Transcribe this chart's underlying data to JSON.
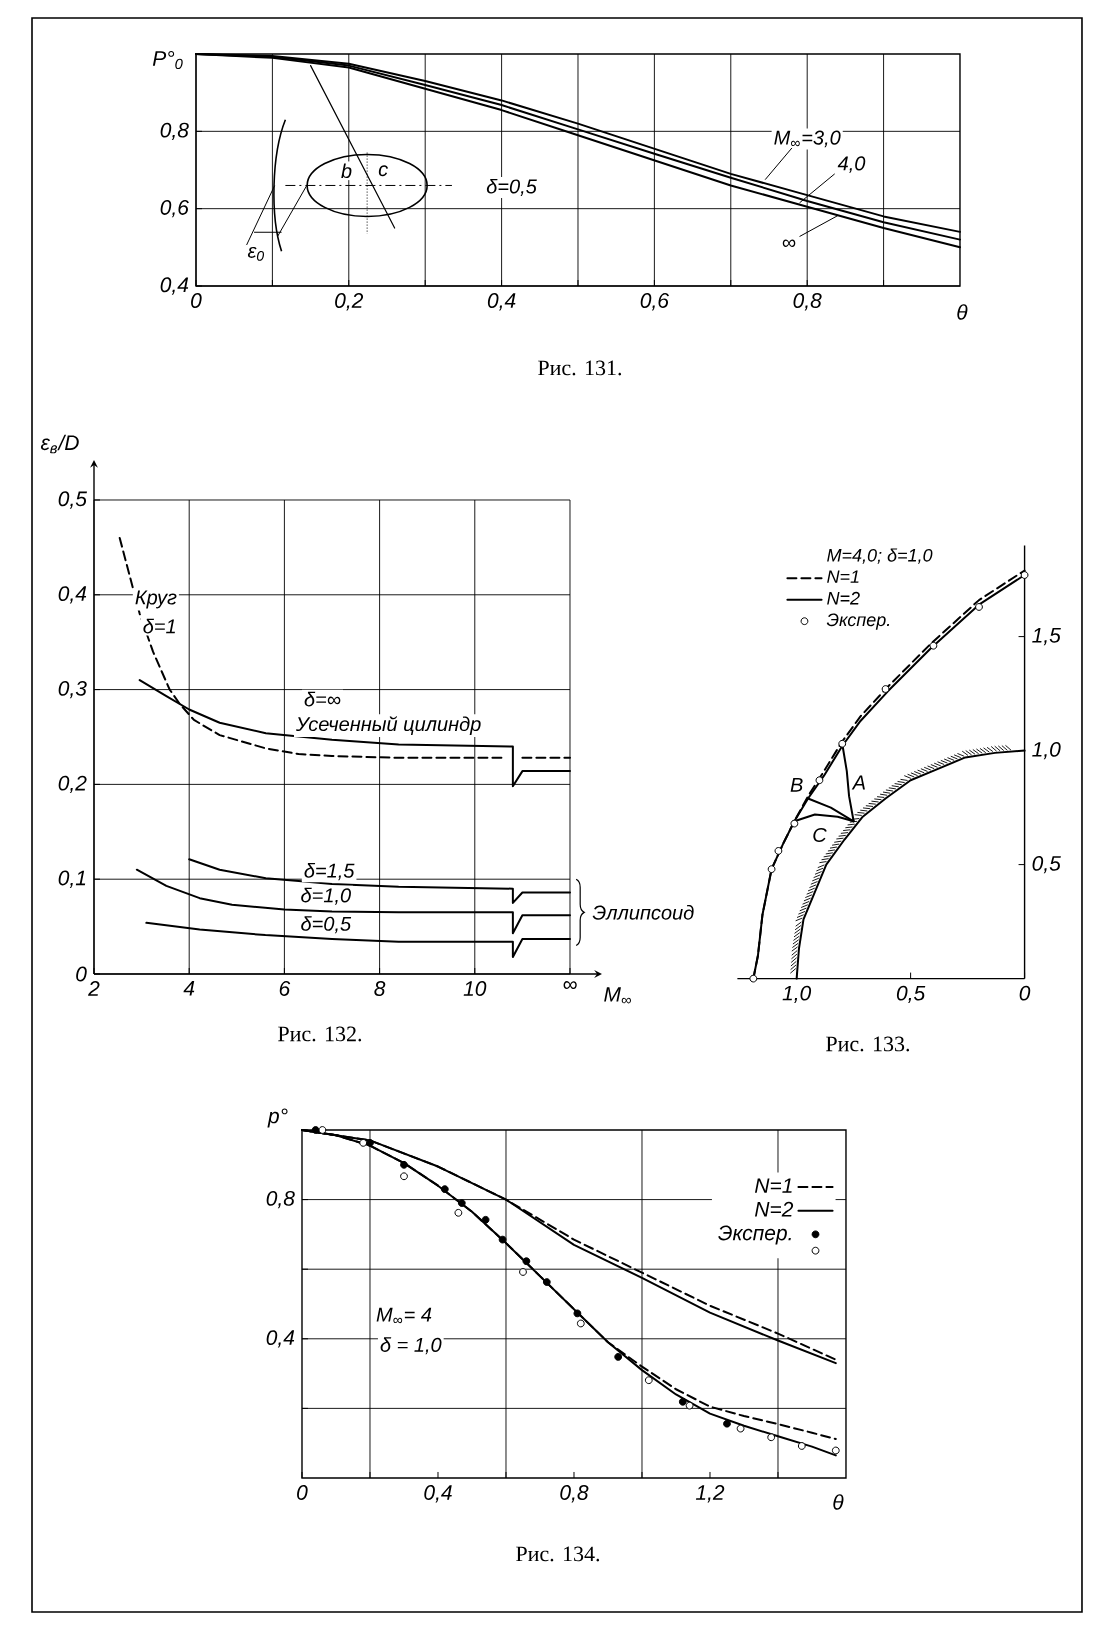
{
  "chart_data": [
    {
      "type": "line",
      "title": "Рис. 131.",
      "xlabel": "θ",
      "ylabel": "P°$_{0}$",
      "x": [
        0,
        0.1,
        0.2,
        0.3,
        0.4,
        0.5,
        0.6,
        0.7,
        0.8,
        0.9,
        1.0
      ],
      "series": [
        {
          "name": "M$_{∞}$=3,0",
          "color": "#000000",
          "values": [
            1.0,
            0.995,
            0.975,
            0.93,
            0.88,
            0.82,
            0.755,
            0.69,
            0.635,
            0.58,
            0.54
          ]
        },
        {
          "name": "4,0",
          "color": "#000000",
          "values": [
            1.0,
            0.993,
            0.97,
            0.92,
            0.868,
            0.805,
            0.742,
            0.68,
            0.62,
            0.565,
            0.52
          ]
        },
        {
          "name": "∞",
          "color": "#000000",
          "values": [
            1.0,
            0.99,
            0.965,
            0.91,
            0.855,
            0.79,
            0.725,
            0.66,
            0.605,
            0.55,
            0.5
          ]
        },
        {
          "color": "#000000",
          "x": [
            0.15,
            0.26
          ],
          "values": [
            0.97,
            0.55
          ]
        }
      ],
      "xlim": [
        0,
        1
      ],
      "ylim": [
        0.4,
        1
      ],
      "xticks": [
        0,
        {
          "value": 0.1,
          "label": null
        },
        {
          "value": 0.2,
          "label": "0,2"
        },
        {
          "value": 0.3,
          "label": null
        },
        {
          "value": 0.4,
          "label": "0,4"
        },
        {
          "value": 0.5,
          "label": null
        },
        {
          "value": 0.6,
          "label": "0,6"
        },
        {
          "value": 0.7,
          "label": null
        },
        {
          "value": 0.8,
          "label": "0,8"
        },
        {
          "value": 0.9,
          "label": null
        }
      ],
      "yticks": [
        {
          "value": 0.4,
          "label": "0,4"
        },
        {
          "value": 0.6,
          "label": "0,6"
        },
        {
          "value": 0.8,
          "label": "0,8"
        }
      ],
      "grid": true,
      "annotations": [
        "δ=0,5",
        "b",
        "c",
        "ε$_{0}$"
      ]
    },
    {
      "type": "line",
      "title": "Рис. 132.",
      "xlabel": "M$_{∞}$",
      "ylabel": "ε$_{в}$/D",
      "series": [
        {
          "name": "Круг",
          "color": "#000000",
          "line_style": "dashed",
          "x": [
            2.54,
            2.75,
            2.96,
            3.24,
            3.59,
            3.8,
            4.1,
            4.64,
            5.61,
            6.3,
            7.0,
            8.4,
            10.6,
            10.8,
            11.0,
            12
          ],
          "values": [
            0.46,
            0.42,
            0.38,
            0.34,
            0.3,
            0.285,
            0.268,
            0.252,
            0.238,
            0.232,
            0.23,
            0.228,
            0.228,
            null,
            0.228,
            0.228
          ]
        },
        {
          "name": "δ=∞",
          "color": "#000000",
          "x": [
            2.96,
            3.52,
            4.0,
            4.64,
            5.61,
            7.0,
            8.4,
            10.8,
            10.8,
            11.0,
            12
          ],
          "values": [
            0.31,
            0.293,
            0.279,
            0.265,
            0.254,
            0.247,
            0.242,
            0.24,
            0.198,
            0.214,
            0.214
          ]
        },
        {
          "name": "δ=1,5",
          "color": "#000000",
          "x": [
            4.0,
            4.64,
            5.61,
            6.3,
            7.0,
            8.4,
            10.8,
            10.8,
            11.0,
            12
          ],
          "values": [
            0.121,
            0.11,
            0.101,
            0.098,
            0.095,
            0.092,
            0.09,
            0.075,
            0.086,
            0.086
          ]
        },
        {
          "name": "δ=1,0",
          "color": "#000000",
          "x": [
            2.9,
            3.52,
            4.22,
            4.9,
            6.0,
            7.0,
            8.4,
            10.8,
            10.8,
            11.0,
            12
          ],
          "values": [
            0.11,
            0.093,
            0.08,
            0.073,
            0.068,
            0.066,
            0.065,
            0.065,
            0.043,
            0.062,
            0.062
          ]
        },
        {
          "name": "δ=0,5",
          "color": "#000000",
          "x": [
            3.1,
            4.22,
            5.6,
            7.0,
            8.4,
            10.8,
            10.8,
            11.0,
            12
          ],
          "values": [
            0.054,
            0.047,
            0.041,
            0.037,
            0.034,
            0.034,
            0.018,
            0.037,
            0.037
          ]
        }
      ],
      "xlim": [
        2,
        12
      ],
      "ylim": [
        0,
        0.5
      ],
      "xticks": [
        2,
        4,
        6,
        8,
        10,
        {
          "value": 12,
          "label": "∞"
        }
      ],
      "yticks": [
        0,
        {
          "value": 0.1,
          "label": "0,1"
        },
        {
          "value": 0.2,
          "label": "0,2"
        },
        {
          "value": 0.3,
          "label": "0,3"
        },
        {
          "value": 0.4,
          "label": "0,4"
        },
        {
          "value": 0.5,
          "label": "0,5"
        }
      ],
      "grid": true,
      "annotations": [
        "δ=1",
        "Усеченный цилиндр",
        "Эллипсоид"
      ]
    },
    {
      "type": "line",
      "title": "Рис. 133.",
      "legend_title": "M=4,0; δ=1,0",
      "legend": "top left",
      "series": [
        {
          "name": "N=1",
          "color": "#000000",
          "line_style": "dashed",
          "x": [
            1.19,
            1.17,
            1.15,
            1.11,
            1.06,
            1.01,
            0.95,
            0.88,
            0.8,
            0.72,
            0.6,
            0.41,
            0.2,
            0
          ],
          "values": [
            0,
            0.1,
            0.28,
            0.48,
            0.59,
            0.69,
            0.8,
            0.91,
            1.04,
            1.15,
            1.28,
            1.47,
            1.66,
            1.79
          ]
        },
        {
          "name": "N=2",
          "color": "#000000",
          "x": [
            1.19,
            1.17,
            1.15,
            1.11,
            1.06,
            1.01,
            0.95,
            0.88,
            0.8,
            0.72,
            0.6,
            0.41,
            0.2,
            0
          ],
          "values": [
            0,
            0.1,
            0.28,
            0.48,
            0.59,
            0.69,
            0.79,
            0.89,
            1.02,
            1.13,
            1.26,
            1.45,
            1.64,
            1.77
          ]
        },
        {
          "name": "Экспер.",
          "type": "scatter",
          "marker": "circle",
          "color": "#ffffff",
          "x": [
            1.19,
            1.11,
            1.08,
            1.01,
            0.9,
            0.8,
            0.61,
            0.4,
            0.2,
            0
          ],
          "values": [
            0,
            0.48,
            0.56,
            0.68,
            0.87,
            1.03,
            1.27,
            1.46,
            1.63,
            1.77
          ]
        },
        {
          "name": "A",
          "color": "#000000",
          "x": [
            0.8,
            0.78,
            0.77,
            0.75
          ],
          "values": [
            1.03,
            0.91,
            0.8,
            0.69
          ]
        },
        {
          "name": "B",
          "color": "#000000",
          "x": [
            0.95,
            0.85,
            0.75
          ],
          "values": [
            0.79,
            0.75,
            0.69
          ]
        },
        {
          "name": "C",
          "color": "#000000",
          "x": [
            1.01,
            0.92,
            0.82,
            0.75
          ],
          "values": [
            0.69,
            0.72,
            0.71,
            0.69
          ]
        },
        {
          "color": "#000000",
          "x": [
            1,
            0.99,
            0.97,
            0.92,
            0.87,
            0.79,
            0.71,
            0.61,
            0.5,
            0.38,
            0.26,
            0.13,
            0
          ],
          "values": [
            0,
            0.13,
            0.26,
            0.38,
            0.5,
            0.61,
            0.71,
            0.79,
            0.87,
            0.92,
            0.97,
            0.99,
            1
          ]
        }
      ],
      "xlim": [
        1.26,
        0
      ],
      "ylim": [
        0,
        1.9
      ],
      "xticks": [
        {
          "value": 1,
          "label": "1,0"
        },
        {
          "value": 0.5,
          "label": "0,5"
        },
        0
      ],
      "yticks": [
        {
          "value": 0.5,
          "label": "0,5"
        },
        {
          "value": 1,
          "label": "1,0"
        },
        {
          "value": 1.5,
          "label": "1,5"
        }
      ]
    },
    {
      "type": "line",
      "title": "Рис. 134.",
      "xlabel": "θ",
      "ylabel": "p°",
      "legend": "top right",
      "series": [
        {
          "name": "N=1",
          "color": "#000000",
          "line_style": "dashed",
          "x": [
            0,
            0.2,
            0.4,
            0.6,
            0.8,
            1.0,
            1.2,
            1.4,
            1.57
          ],
          "values": [
            1,
            0.97,
            0.895,
            0.8,
            0.685,
            0.59,
            0.495,
            0.415,
            0.34
          ]
        },
        {
          "name": "N=2",
          "color": "#000000",
          "x": [
            0,
            0.2,
            0.4,
            0.6,
            0.8,
            1.0,
            1.2,
            1.4,
            1.57
          ],
          "values": [
            1,
            0.97,
            0.895,
            0.8,
            0.67,
            0.575,
            0.475,
            0.395,
            0.33
          ]
        },
        {
          "color": "#000000",
          "line_style": "dashed",
          "x": [
            0,
            0.1,
            0.2,
            0.3,
            0.4,
            0.5,
            0.6,
            0.7,
            0.8,
            0.9,
            1.0,
            1.1,
            1.2,
            1.3,
            1.4,
            1.5,
            1.57
          ],
          "values": [
            1,
            0.985,
            0.955,
            0.905,
            0.84,
            0.765,
            0.675,
            0.58,
            0.485,
            0.39,
            0.32,
            0.255,
            0.205,
            0.178,
            0.155,
            0.13,
            0.112
          ]
        },
        {
          "color": "#000000",
          "x": [
            0,
            0.1,
            0.2,
            0.3,
            0.4,
            0.5,
            0.6,
            0.7,
            0.8,
            0.9,
            1.0,
            1.1,
            1.2,
            1.3,
            1.4,
            1.5,
            1.57
          ],
          "values": [
            1,
            0.985,
            0.955,
            0.905,
            0.84,
            0.765,
            0.675,
            0.58,
            0.485,
            0.39,
            0.31,
            0.24,
            0.185,
            0.15,
            0.12,
            0.09,
            0.065
          ]
        },
        {
          "name": "Экспер.",
          "type": "scatter",
          "marker": "circle",
          "color": "#000000",
          "x": [
            0.04,
            0.2,
            0.3,
            0.42,
            0.47,
            0.54,
            0.59,
            0.66,
            0.72,
            0.81,
            0.93,
            1.12,
            1.25
          ],
          "values": [
            1,
            0.963,
            0.9,
            0.83,
            0.79,
            0.742,
            0.685,
            0.623,
            0.563,
            0.473,
            0.348,
            0.219,
            0.156
          ]
        },
        {
          "type": "scatter",
          "marker": "circle",
          "color": "#ffffff",
          "x": [
            0.06,
            0.18,
            0.3,
            0.46,
            0.65,
            0.82,
            1.02,
            1.14,
            1.29,
            1.38,
            1.47,
            1.57
          ],
          "values": [
            1,
            0.963,
            0.867,
            0.762,
            0.592,
            0.444,
            0.281,
            0.208,
            0.142,
            0.117,
            0.092,
            0.079
          ]
        }
      ],
      "xlim": [
        0,
        1.6
      ],
      "ylim": [
        0,
        1
      ],
      "xticks": [
        0,
        {
          "value": 0.2,
          "label": null
        },
        {
          "value": 0.4,
          "label": "0,4"
        },
        {
          "value": 0.6,
          "label": null
        },
        {
          "value": 0.8,
          "label": "0,8"
        },
        {
          "value": 1,
          "label": null
        },
        {
          "value": 1.2,
          "label": "1,2"
        },
        {
          "value": 1.4,
          "label": null
        }
      ],
      "yticks": [
        {
          "value": 0.2,
          "label": null
        },
        {
          "value": 0.4,
          "label": "0,4"
        },
        {
          "value": 0.6,
          "label": null
        },
        {
          "value": 0.8,
          "label": "0,8"
        }
      ],
      "grid": true,
      "annotations": [
        "M$_{∞}$= 4",
        "δ = 1,0"
      ]
    }
  ]
}
